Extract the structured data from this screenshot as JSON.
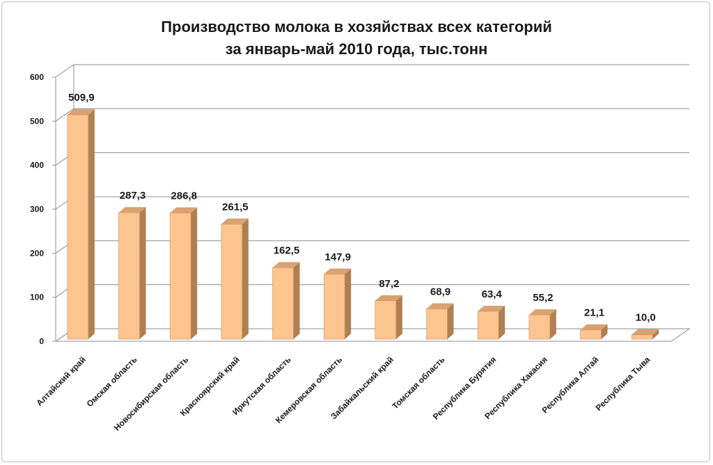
{
  "chart_data": {
    "type": "bar",
    "title_line1": "Производство молока в хозяйствах всех категорий",
    "title_line2": "за январь-май 2010 года, тыс.тонн",
    "xlabel": "",
    "ylabel": "",
    "ylim": [
      0,
      600
    ],
    "yticks": [
      "0",
      "100",
      "200",
      "300",
      "400",
      "500",
      "600"
    ],
    "grid": true,
    "legend": "none",
    "bar_color": "#fcc48e",
    "bar_side_color": "#b07f52",
    "bar_top_color": "#d9a271",
    "categories": [
      "Алтайский край",
      "Омская область",
      "Новосибирская область",
      "Красноярский край",
      "Иркутская область",
      "Кемеровская область",
      "Забайкальский край",
      "Томская область",
      "Республика Бурятия",
      "Республика Хакасия",
      "Республика Алтай",
      "Республика Тыва"
    ],
    "values": [
      509.9,
      287.3,
      286.8,
      261.5,
      162.5,
      147.9,
      87.2,
      68.9,
      63.4,
      55.2,
      21.1,
      10.0
    ],
    "value_labels": [
      "509,9",
      "287,3",
      "286,8",
      "261,5",
      "162,5",
      "147,9",
      "87,2",
      "68,9",
      "63,4",
      "55,2",
      "21,1",
      "10,0"
    ]
  }
}
